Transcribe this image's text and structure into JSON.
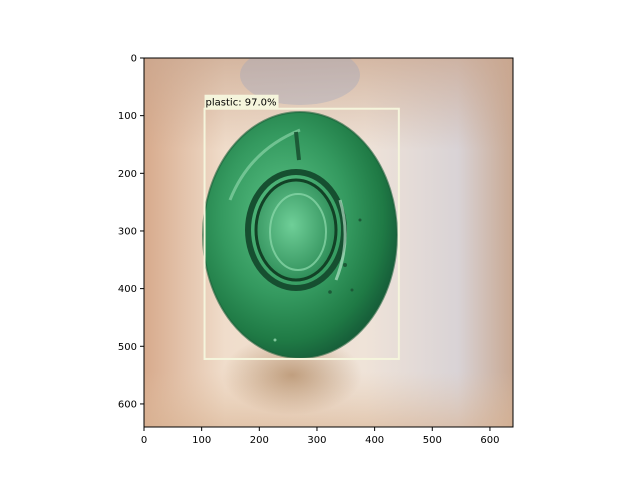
{
  "image": {
    "width": 640,
    "height": 640,
    "subject": "green glass bottle viewed from the bottom",
    "colors": {
      "background_warm": "#d4a383",
      "background_light": "#f1e1d2",
      "background_cool": "#c9cbd6",
      "bottle_dark": "#1e7a46",
      "bottle_mid": "#3aa36a",
      "bottle_light": "#7fd3a0"
    }
  },
  "axes": {
    "x_ticks": [
      {
        "value": 0,
        "label": "0"
      },
      {
        "value": 100,
        "label": "100"
      },
      {
        "value": 200,
        "label": "200"
      },
      {
        "value": 300,
        "label": "300"
      },
      {
        "value": 400,
        "label": "400"
      },
      {
        "value": 500,
        "label": "500"
      },
      {
        "value": 600,
        "label": "600"
      }
    ],
    "y_ticks": [
      {
        "value": 0,
        "label": "0"
      },
      {
        "value": 100,
        "label": "100"
      },
      {
        "value": 200,
        "label": "200"
      },
      {
        "value": 300,
        "label": "300"
      },
      {
        "value": 400,
        "label": "400"
      },
      {
        "value": 500,
        "label": "500"
      },
      {
        "value": 600,
        "label": "600"
      }
    ],
    "xlim": [
      0,
      640
    ],
    "ylim": [
      640,
      0
    ]
  },
  "detection": {
    "label": "plastic: 97.0%",
    "box": {
      "x1": 105,
      "y1": 88,
      "x2": 442,
      "y2": 522
    },
    "box_color": "#f5f5dc",
    "label_bg": "#f5f5dc"
  }
}
